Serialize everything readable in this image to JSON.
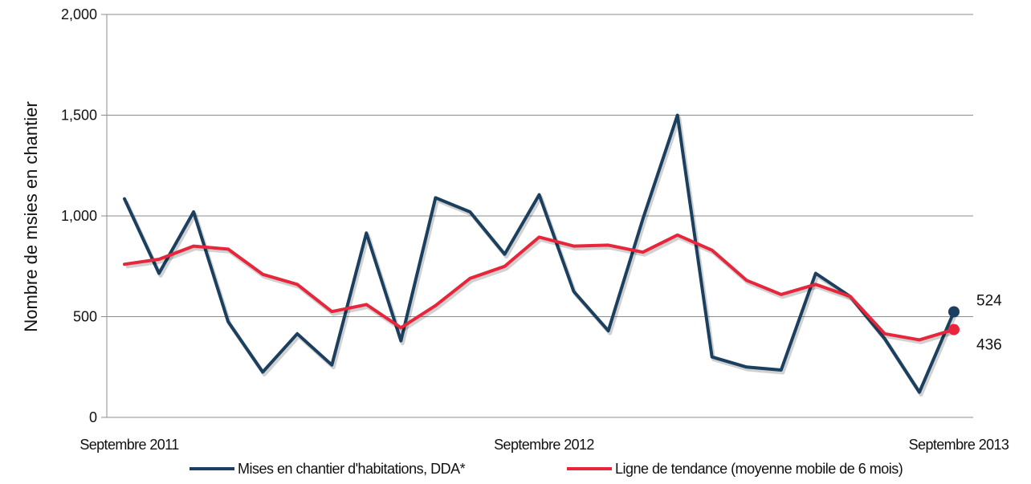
{
  "chart_data": {
    "type": "line",
    "title": "",
    "xlabel": "",
    "ylabel": "Nombre de msies en chantier",
    "ylim": [
      0,
      2000
    ],
    "yticks": [
      0,
      500,
      1000,
      1500,
      2000
    ],
    "ytick_labels": [
      "0",
      "500",
      "1,000",
      "1,500",
      "2,000"
    ],
    "xtick_labels": [
      "Septembre 2011",
      "Septembre 2012",
      "Septembre 2013"
    ],
    "xtick_index": [
      0,
      12,
      24
    ],
    "x": [
      "2011-09",
      "2011-10",
      "2011-11",
      "2011-12",
      "2012-01",
      "2012-02",
      "2012-03",
      "2012-04",
      "2012-05",
      "2012-06",
      "2012-07",
      "2012-08",
      "2012-09",
      "2012-10",
      "2012-11",
      "2012-12",
      "2013-01",
      "2013-02",
      "2013-03",
      "2013-04",
      "2013-05",
      "2013-06",
      "2013-07",
      "2013-08",
      "2013-09"
    ],
    "grid": true,
    "legend_position": "bottom",
    "series": [
      {
        "name": "Mises en chantier d'habitations, DDA*",
        "color": "#1b3f5e",
        "values": [
          1085,
          715,
          1020,
          475,
          225,
          415,
          260,
          915,
          380,
          1090,
          1020,
          810,
          1105,
          625,
          430,
          985,
          1500,
          300,
          250,
          235,
          715,
          600,
          390,
          125,
          524
        ],
        "end_label": "524"
      },
      {
        "name": "Ligne de tendance (moyenne mobile de 6 mois)",
        "color": "#e8253a",
        "values": [
          760,
          785,
          850,
          835,
          710,
          660,
          525,
          560,
          445,
          555,
          690,
          750,
          895,
          850,
          855,
          820,
          905,
          830,
          680,
          610,
          660,
          600,
          415,
          385,
          436
        ],
        "end_label": "436"
      }
    ]
  }
}
